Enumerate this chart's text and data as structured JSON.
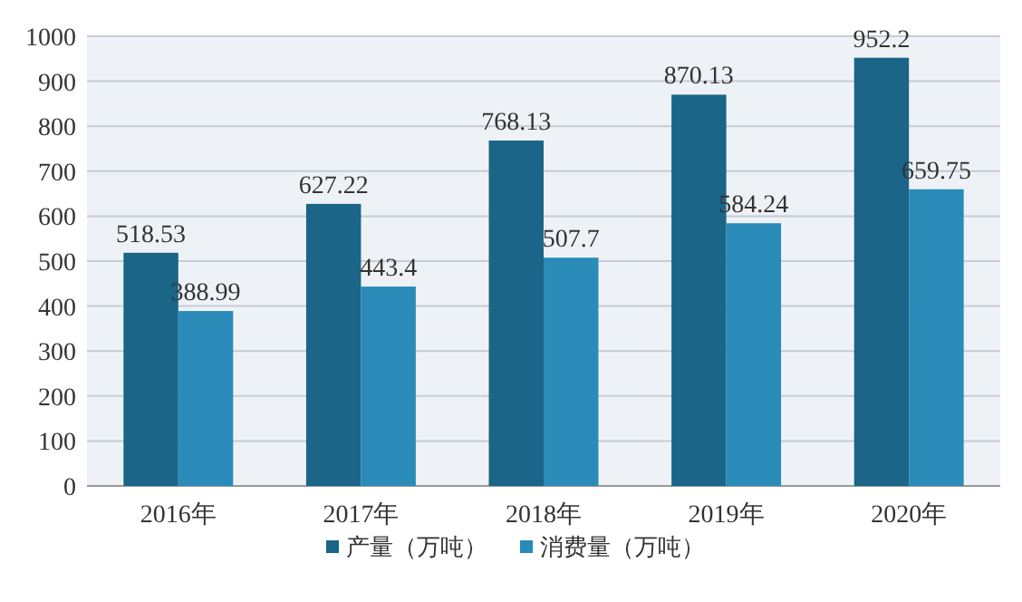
{
  "chart_data": {
    "type": "bar",
    "categories": [
      "2016年",
      "2017年",
      "2018年",
      "2019年",
      "2020年"
    ],
    "series": [
      {
        "name": "产量（万吨）",
        "color": "#1a6588",
        "values": [
          518.53,
          627.22,
          768.13,
          870.13,
          952.2
        ]
      },
      {
        "name": "消费量（万吨）",
        "color": "#2a8bb8",
        "values": [
          388.99,
          443.4,
          507.7,
          584.24,
          659.75
        ]
      }
    ],
    "ylim": [
      0,
      1000
    ],
    "yticks": [
      0,
      100,
      200,
      300,
      400,
      500,
      600,
      700,
      800,
      900,
      1000
    ],
    "grid": "y",
    "legend": "bottom",
    "data_labels": true
  }
}
